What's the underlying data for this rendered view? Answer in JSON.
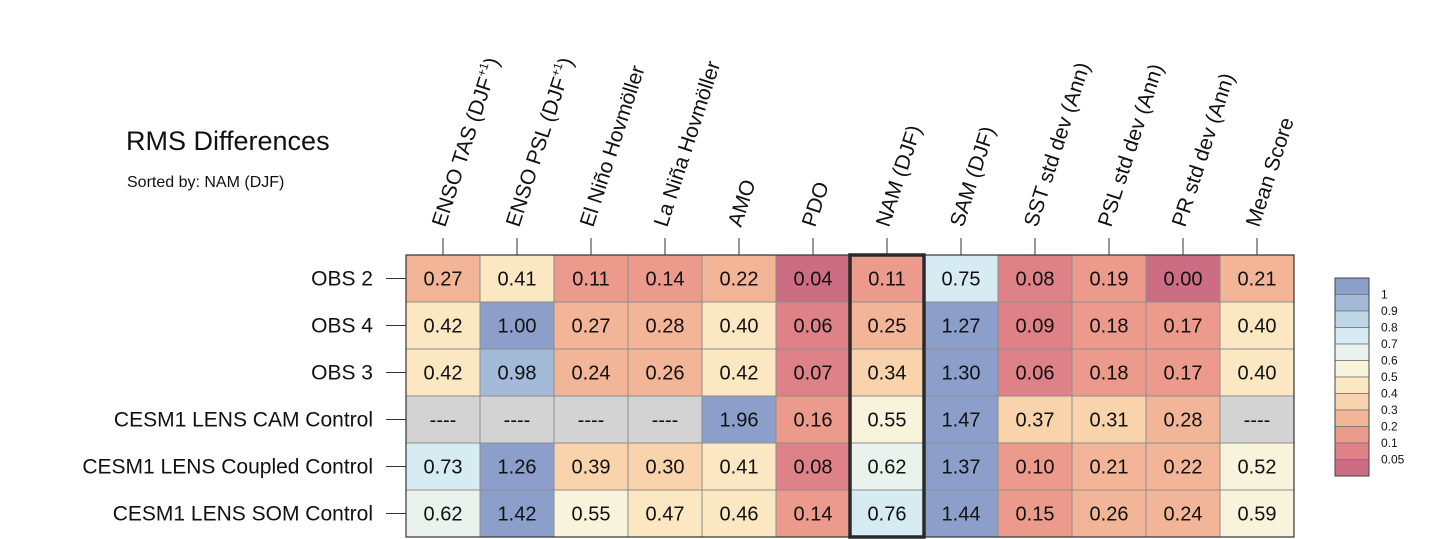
{
  "title": "RMS Differences",
  "subtitle": "Sorted by: NAM (DJF)",
  "chart_data": {
    "type": "heatmap",
    "title": "RMS Differences",
    "subtitle": "Sorted by: NAM (DJF)",
    "columns": [
      {
        "text": "ENSO TAS (DJF",
        "sup": "+1",
        "tail": ")"
      },
      {
        "text": "ENSO PSL (DJF",
        "sup": "+1",
        "tail": ")"
      },
      {
        "text": "El Niño Hovmöller"
      },
      {
        "text": "La Niña Hovmöller"
      },
      {
        "text": "AMO"
      },
      {
        "text": "PDO"
      },
      {
        "text": "NAM (DJF)"
      },
      {
        "text": "SAM (DJF)"
      },
      {
        "text": "SST std dev (Ann)"
      },
      {
        "text": "PSL std dev (Ann)"
      },
      {
        "text": "PR std dev (Ann)"
      },
      {
        "text": "Mean Score"
      }
    ],
    "rows": [
      "OBS 2",
      "OBS 4",
      "OBS 3",
      "CESM1 LENS CAM Control",
      "CESM1 LENS Coupled Control",
      "CESM1 LENS SOM Control"
    ],
    "values": [
      [
        "0.27",
        "0.41",
        "0.11",
        "0.14",
        "0.22",
        "0.04",
        "0.11",
        "0.75",
        "0.08",
        "0.19",
        "0.00",
        "0.21"
      ],
      [
        "0.42",
        "1.00",
        "0.27",
        "0.28",
        "0.40",
        "0.06",
        "0.25",
        "1.27",
        "0.09",
        "0.18",
        "0.17",
        "0.40"
      ],
      [
        "0.42",
        "0.98",
        "0.24",
        "0.26",
        "0.42",
        "0.07",
        "0.34",
        "1.30",
        "0.06",
        "0.18",
        "0.17",
        "0.40"
      ],
      [
        "----",
        "----",
        "----",
        "----",
        "1.96",
        "0.16",
        "0.55",
        "1.47",
        "0.37",
        "0.31",
        "0.28",
        "----"
      ],
      [
        "0.73",
        "1.26",
        "0.39",
        "0.30",
        "0.41",
        "0.08",
        "0.62",
        "1.37",
        "0.10",
        "0.21",
        "0.22",
        "0.52"
      ],
      [
        "0.62",
        "1.42",
        "0.55",
        "0.47",
        "0.46",
        "0.14",
        "0.76",
        "1.44",
        "0.15",
        "0.26",
        "0.24",
        "0.59"
      ]
    ],
    "missing_value": "----",
    "missing_color": "#d3d3d3",
    "highlighted_column": "NAM (DJF)",
    "colorbar": {
      "labels": [
        "1",
        "0.9",
        "0.8",
        "0.7",
        "0.6",
        "0.5",
        "0.4",
        "0.3",
        "0.2",
        "0.1",
        "0.05"
      ],
      "colors": [
        "#8c9fcb",
        "#a3bad9",
        "#bcd6e6",
        "#d6ecf2",
        "#eaf2ee",
        "#f8f4dc",
        "#fbe8c3",
        "#f8d3ab",
        "#f3b597",
        "#eb9a8c",
        "#de8288",
        "#cc6d84"
      ]
    },
    "legend_placement": "right",
    "grid": true
  }
}
